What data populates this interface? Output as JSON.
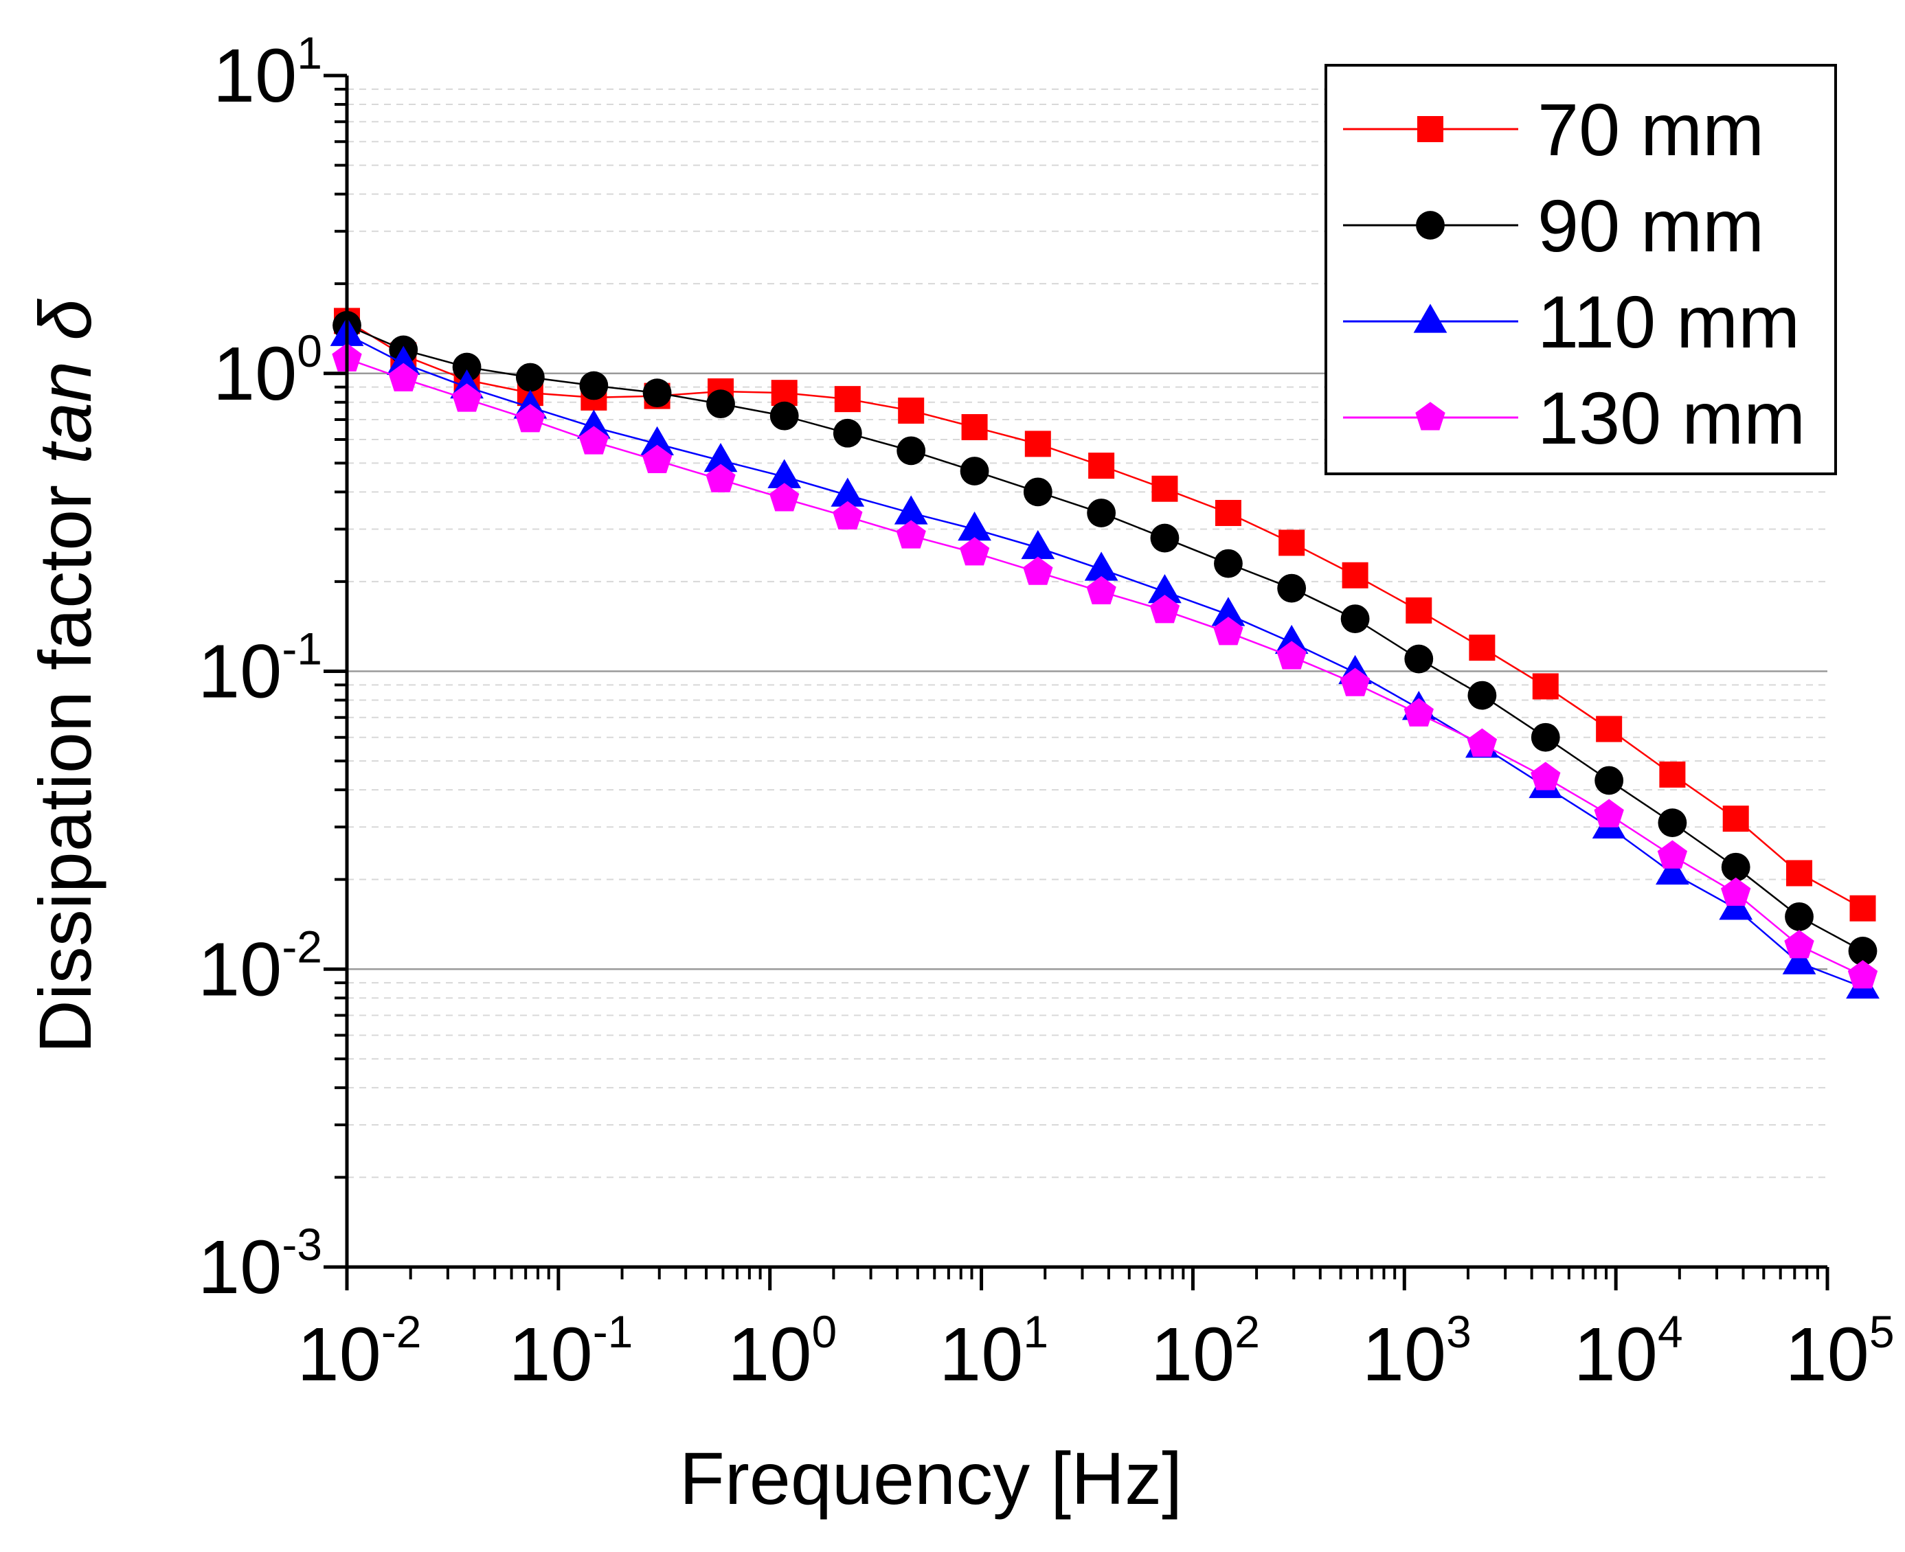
{
  "chart_data": {
    "type": "line",
    "title": "",
    "xlabel": "Frequency [Hz]",
    "ylabel": "Dissipation factor ",
    "ylabel_italic": "tan δ",
    "xscale": "log",
    "yscale": "log",
    "xlim": [
      0.01,
      100000
    ],
    "ylim": [
      0.001,
      10
    ],
    "x_ticks": [
      {
        "base": "10",
        "exp": "-2"
      },
      {
        "base": "10",
        "exp": "-1"
      },
      {
        "base": "10",
        "exp": "0"
      },
      {
        "base": "10",
        "exp": "1"
      },
      {
        "base": "10",
        "exp": "2"
      },
      {
        "base": "10",
        "exp": "3"
      },
      {
        "base": "10",
        "exp": "4"
      },
      {
        "base": "10",
        "exp": "5"
      }
    ],
    "y_ticks": [
      {
        "base": "10",
        "exp": "-3"
      },
      {
        "base": "10",
        "exp": "-2"
      },
      {
        "base": "10",
        "exp": "-1"
      },
      {
        "base": "10",
        "exp": "0"
      },
      {
        "base": "10",
        "exp": "1"
      }
    ],
    "legend_position": "top-right",
    "x": [
      0.01,
      0.0185,
      0.0369,
      0.0736,
      0.147,
      0.293,
      0.585,
      1.17,
      2.33,
      4.65,
      9.28,
      18.5,
      36.9,
      73.6,
      147,
      293,
      585,
      1170,
      2330,
      4650,
      9280,
      18500,
      36900,
      73600,
      147000
    ],
    "series": [
      {
        "name": "70 mm",
        "color": "#ff0000",
        "marker": "square",
        "values": [
          1.5,
          1.15,
          0.95,
          0.86,
          0.83,
          0.84,
          0.87,
          0.86,
          0.82,
          0.75,
          0.66,
          0.58,
          0.49,
          0.41,
          0.34,
          0.27,
          0.21,
          0.16,
          0.12,
          0.089,
          0.064,
          0.045,
          0.032,
          0.021,
          0.016
        ]
      },
      {
        "name": "90 mm",
        "color": "#000000",
        "marker": "circle",
        "values": [
          1.45,
          1.2,
          1.05,
          0.97,
          0.91,
          0.86,
          0.79,
          0.72,
          0.63,
          0.55,
          0.47,
          0.4,
          0.34,
          0.28,
          0.23,
          0.19,
          0.15,
          0.11,
          0.083,
          0.06,
          0.043,
          0.031,
          0.022,
          0.015,
          0.0115
        ]
      },
      {
        "name": "110 mm",
        "color": "#0000ff",
        "marker": "triangle",
        "values": [
          1.35,
          1.08,
          0.9,
          0.77,
          0.66,
          0.58,
          0.51,
          0.45,
          0.39,
          0.34,
          0.3,
          0.26,
          0.22,
          0.185,
          0.155,
          0.125,
          0.099,
          0.075,
          0.056,
          0.041,
          0.03,
          0.021,
          0.016,
          0.0105,
          0.0087
        ]
      },
      {
        "name": "130 mm",
        "color": "#ff00ff",
        "marker": "pentagon",
        "values": [
          1.12,
          0.96,
          0.82,
          0.7,
          0.59,
          0.51,
          0.44,
          0.38,
          0.33,
          0.285,
          0.25,
          0.215,
          0.185,
          0.16,
          0.135,
          0.112,
          0.091,
          0.072,
          0.057,
          0.044,
          0.033,
          0.024,
          0.018,
          0.012,
          0.0095
        ]
      }
    ]
  }
}
